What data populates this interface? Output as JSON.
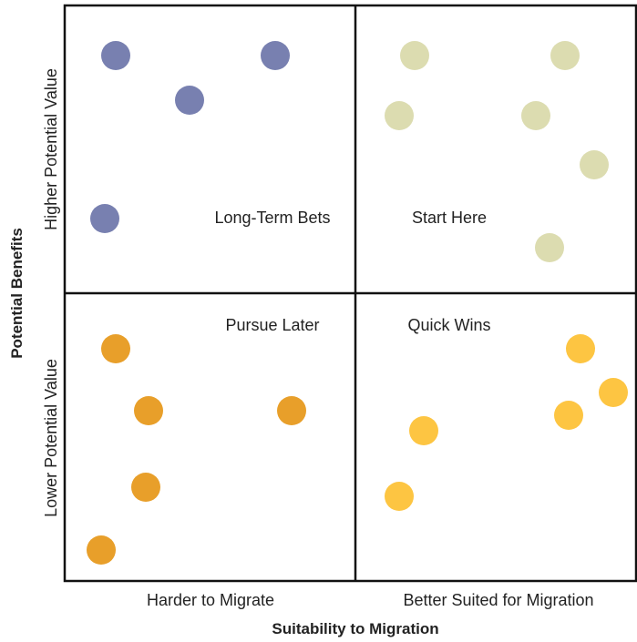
{
  "axes": {
    "x_title": "Suitability to Migration",
    "x_left_label": "Harder to Migrate",
    "x_right_label": "Better Suited for Migration",
    "y_title": "Potential Benefits",
    "y_top_label": "Higher Potential Value",
    "y_bottom_label": "Lower Potential Value"
  },
  "quadrants": {
    "top_left": {
      "label": "Long-Term Bets",
      "color": "#7880b0"
    },
    "top_right": {
      "label": "Start Here",
      "color": "#dcdcb0"
    },
    "bottom_left": {
      "label": "Pursue Later",
      "color": "#e89f2a"
    },
    "bottom_right": {
      "label": "Quick Wins",
      "color": "#fdc542"
    }
  },
  "colors": {
    "border": "#111111",
    "text": "#222222"
  }
}
